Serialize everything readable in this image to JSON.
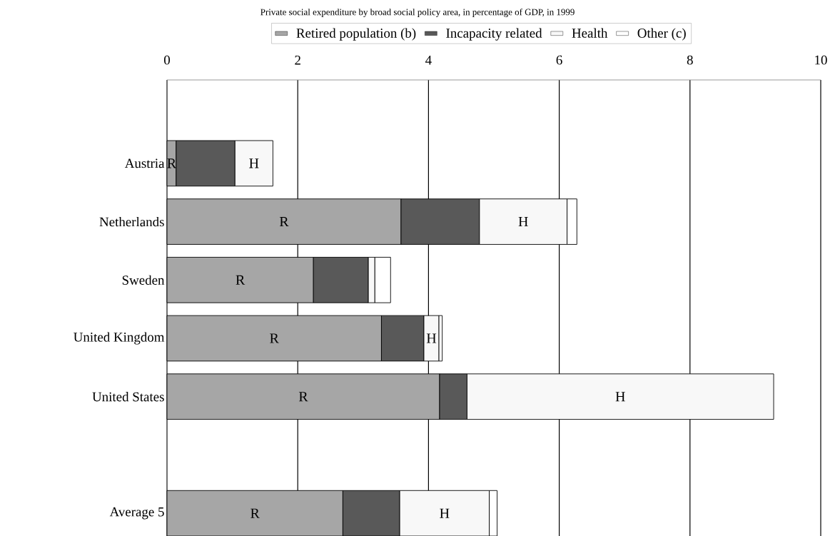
{
  "chart_data": {
    "type": "bar",
    "orientation": "horizontal",
    "stacked": true,
    "title": "Private social expenditure by broad social policy area, in percentage of GDP, in 1999",
    "categories": [
      "Austria",
      "Netherlands",
      "Sweden",
      "United Kingdom",
      "United States",
      null,
      "Average 5"
    ],
    "series": [
      {
        "name": "Retired population (b)",
        "color": "#a6a6a6",
        "values": [
          0.14,
          3.58,
          2.24,
          3.28,
          4.17,
          null,
          2.69
        ],
        "value_labels": [
          "R",
          "R",
          "R",
          "R",
          "R",
          null,
          "R"
        ]
      },
      {
        "name": "Incapacity related",
        "color": "#595959",
        "values": [
          0.9,
          1.2,
          0.84,
          0.65,
          0.42,
          null,
          0.87
        ],
        "value_labels": [
          null,
          null,
          null,
          null,
          null,
          null,
          null
        ]
      },
      {
        "name": "Health",
        "color": "#f8f8f8",
        "values": [
          0.58,
          1.34,
          0.1,
          0.23,
          4.69,
          null,
          1.37
        ],
        "value_labels": [
          "H",
          "H",
          null,
          "H",
          "H",
          null,
          "H"
        ]
      },
      {
        "name": "Other (c)",
        "color": "#ffffff",
        "values": [
          null,
          0.15,
          0.24,
          0.05,
          null,
          null,
          0.12
        ],
        "value_labels": [
          null,
          null,
          null,
          null,
          null,
          null,
          null
        ]
      }
    ],
    "xlim": [
      0,
      10
    ],
    "xticks": [
      0,
      2,
      4,
      6,
      8,
      10
    ],
    "grid": "x",
    "legend": "top"
  }
}
